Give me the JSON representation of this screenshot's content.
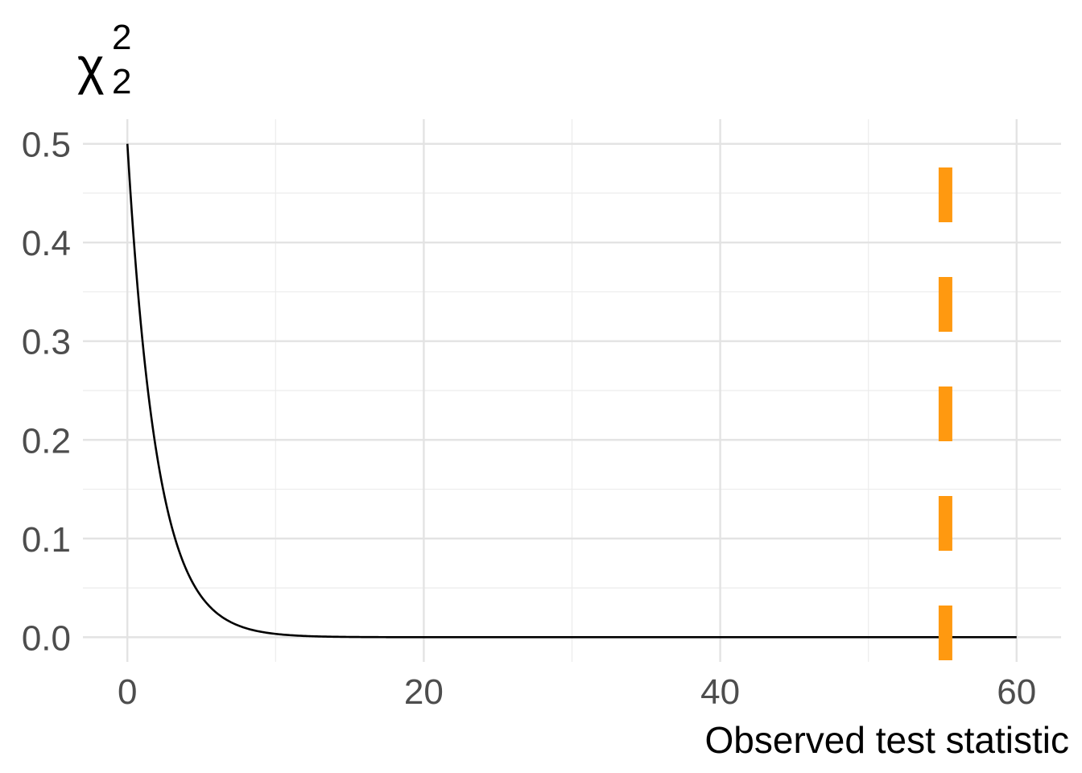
{
  "chart_data": {
    "type": "line",
    "title": {
      "base": "χ",
      "superscript": "2",
      "subscript": "2"
    },
    "xlabel": "Observed test statistic",
    "ylabel": "",
    "xlim": [
      -3,
      63
    ],
    "ylim": [
      -0.025,
      0.525
    ],
    "x_ticks": [
      0,
      20,
      40,
      60
    ],
    "x_tick_labels": [
      "0",
      "20",
      "40",
      "60"
    ],
    "x_minor_ticks": [
      10,
      30,
      50
    ],
    "y_ticks": [
      0.0,
      0.1,
      0.2,
      0.3,
      0.4,
      0.5
    ],
    "y_tick_labels": [
      "0.0",
      "0.1",
      "0.2",
      "0.3",
      "0.4",
      "0.5"
    ],
    "y_minor_ticks": [
      0.05,
      0.15,
      0.25,
      0.35,
      0.45
    ],
    "grid": true,
    "series": [
      {
        "function": "chi-square density",
        "df": 2,
        "x_range": [
          0,
          60
        ],
        "color": "#000000"
      }
    ],
    "vline": {
      "x": 55.2,
      "style": "dashed",
      "color": "#FF9910"
    }
  }
}
